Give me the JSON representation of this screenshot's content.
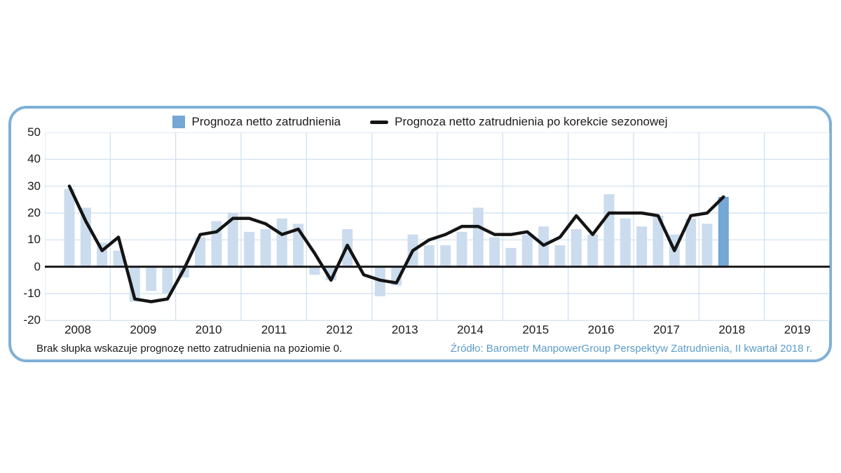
{
  "legend": {
    "bars_label": "Prognoza netto zatrudnienia",
    "line_label": "Prognoza netto zatrudnienia po korekcie sezonowej"
  },
  "footnote": "Brak słupka wskazuje prognozę netto zatrudnienia na poziomie 0.",
  "source": "Źródło: Barometr ManpowerGroup Perspektyw Zatrudnienia, II kwartał 2018 r.",
  "colors": {
    "bar_light": "#cbdcee",
    "bar_highlight": "#74a7d4",
    "line": "#141414",
    "zero_axis": "#1a1a1a",
    "grid": "#ccdff0",
    "box_border": "#7fb0d7",
    "source_text": "#5b9bc8"
  },
  "chart_data": {
    "type": "bar+line",
    "title": "",
    "xlabel": "",
    "ylabel": "",
    "ylim": [
      -20,
      50
    ],
    "yticks": [
      50,
      40,
      30,
      20,
      10,
      0,
      -10,
      -20
    ],
    "grid": true,
    "legend_position": "top",
    "x_years": [
      2008,
      2009,
      2010,
      2011,
      2012,
      2013,
      2014,
      2015,
      2016,
      2017,
      2018,
      2019
    ],
    "note": "values are quarterly; first data point is 2008 Q2; last bar (2018 Q2) is highlighted; bar value 0 means no bar drawn",
    "categories": [
      "2008 Q2",
      "2008 Q3",
      "2008 Q4",
      "2009 Q1",
      "2009 Q2",
      "2009 Q3",
      "2009 Q4",
      "2010 Q1",
      "2010 Q2",
      "2010 Q3",
      "2010 Q4",
      "2011 Q1",
      "2011 Q2",
      "2011 Q3",
      "2011 Q4",
      "2012 Q1",
      "2012 Q2",
      "2012 Q3",
      "2012 Q4",
      "2013 Q1",
      "2013 Q2",
      "2013 Q3",
      "2013 Q4",
      "2014 Q1",
      "2014 Q2",
      "2014 Q3",
      "2014 Q4",
      "2015 Q1",
      "2015 Q2",
      "2015 Q3",
      "2015 Q4",
      "2016 Q1",
      "2016 Q2",
      "2016 Q3",
      "2016 Q4",
      "2017 Q1",
      "2017 Q2",
      "2017 Q3",
      "2017 Q4",
      "2018 Q1",
      "2018 Q2"
    ],
    "series": [
      {
        "name": "Prognoza netto zatrudnienia",
        "type": "bar",
        "values": [
          29,
          22,
          9,
          6,
          -13,
          -9,
          -10,
          -4,
          11,
          17,
          20,
          13,
          14,
          18,
          16,
          -3,
          -5,
          14,
          0,
          -11,
          -7,
          12,
          8,
          8,
          13,
          22,
          11,
          7,
          12,
          15,
          8,
          14,
          12,
          27,
          18,
          15,
          19,
          12,
          18,
          16,
          26
        ]
      },
      {
        "name": "Prognoza netto zatrudnienia po korekcie sezonowej",
        "type": "line",
        "values": [
          30,
          17,
          6,
          11,
          -12,
          -13,
          -12,
          -1,
          12,
          13,
          18,
          18,
          16,
          12,
          14,
          5,
          -5,
          8,
          -3,
          -5,
          -6,
          6,
          10,
          12,
          15,
          15,
          12,
          12,
          13,
          8,
          11,
          19,
          12,
          20,
          20,
          20,
          19,
          6,
          19,
          20,
          26
        ]
      }
    ],
    "highlighted_category": "2018 Q2"
  }
}
